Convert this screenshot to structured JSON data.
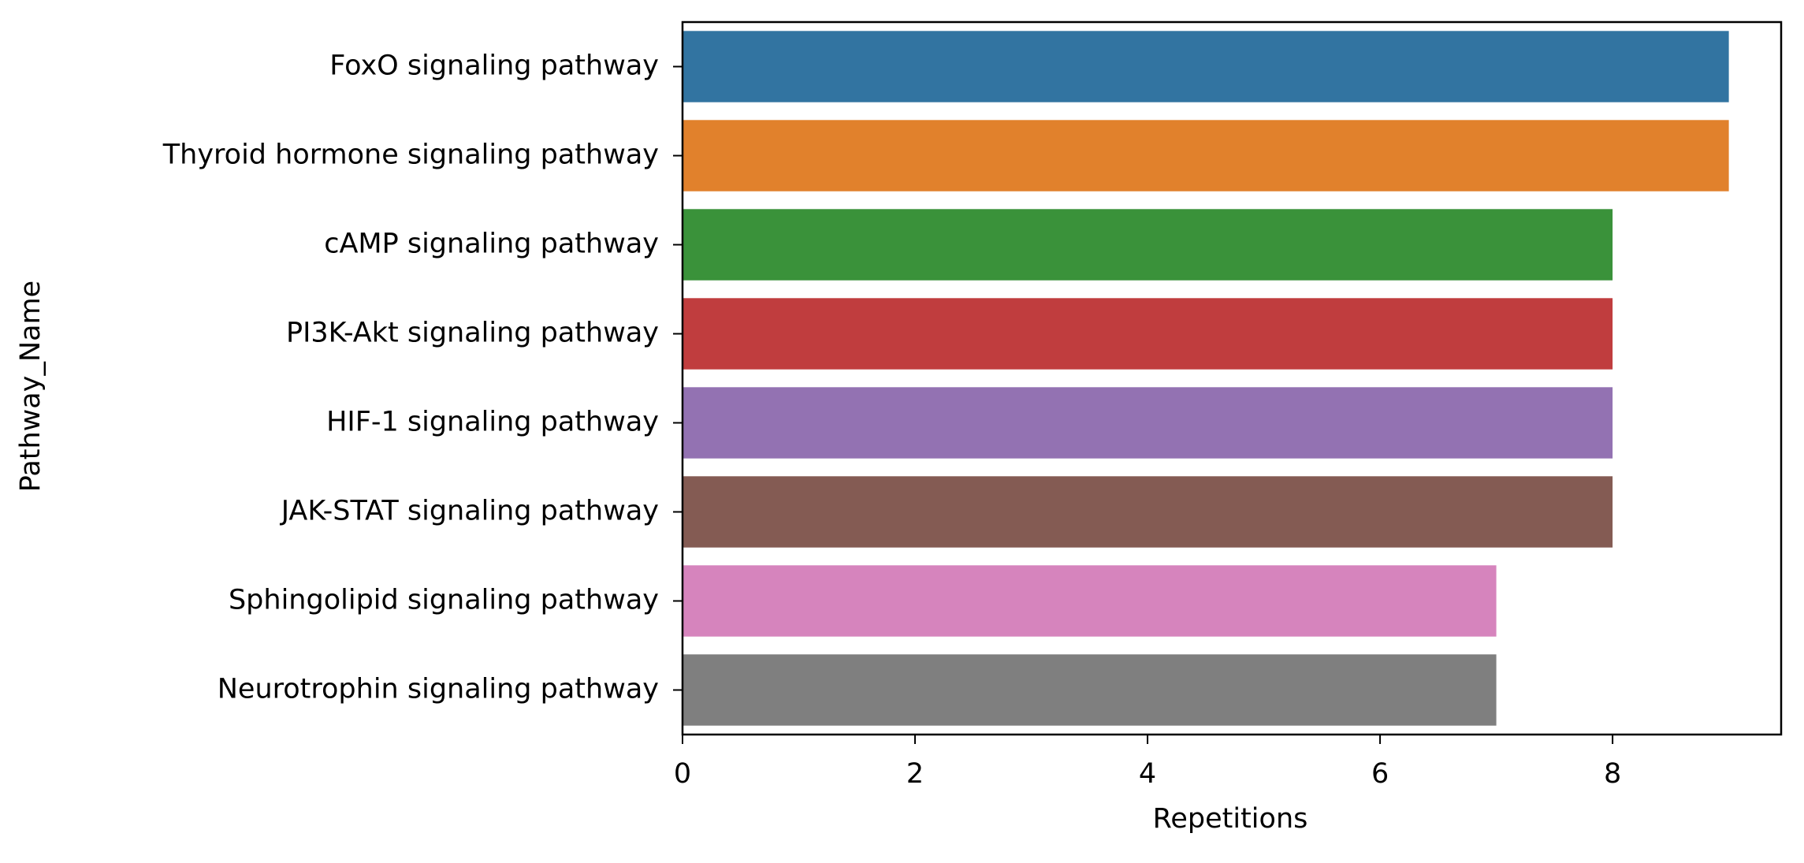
{
  "chart_data": {
    "type": "bar",
    "orientation": "horizontal",
    "title": "",
    "xlabel": "Repetitions",
    "ylabel": "Pathway_Name",
    "categories": [
      "FoxO signaling pathway",
      "Thyroid hormone signaling pathway",
      "cAMP signaling pathway",
      "PI3K-Akt signaling pathway",
      "HIF-1 signaling pathway",
      "JAK-STAT signaling pathway",
      "Sphingolipid signaling pathway",
      "Neurotrophin signaling pathway"
    ],
    "values": [
      9,
      9,
      8,
      8,
      8,
      8,
      7,
      7
    ],
    "colors": [
      "#3274a1",
      "#e1812c",
      "#3a923a",
      "#c03d3e",
      "#9372b2",
      "#845b53",
      "#d684bd",
      "#7f7f7f"
    ],
    "xlim": [
      0,
      9.45
    ],
    "xticks": [
      0,
      2,
      4,
      6,
      8
    ],
    "xtick_labels": [
      "0",
      "2",
      "4",
      "6",
      "8"
    ],
    "grid": false,
    "legend": "none"
  }
}
